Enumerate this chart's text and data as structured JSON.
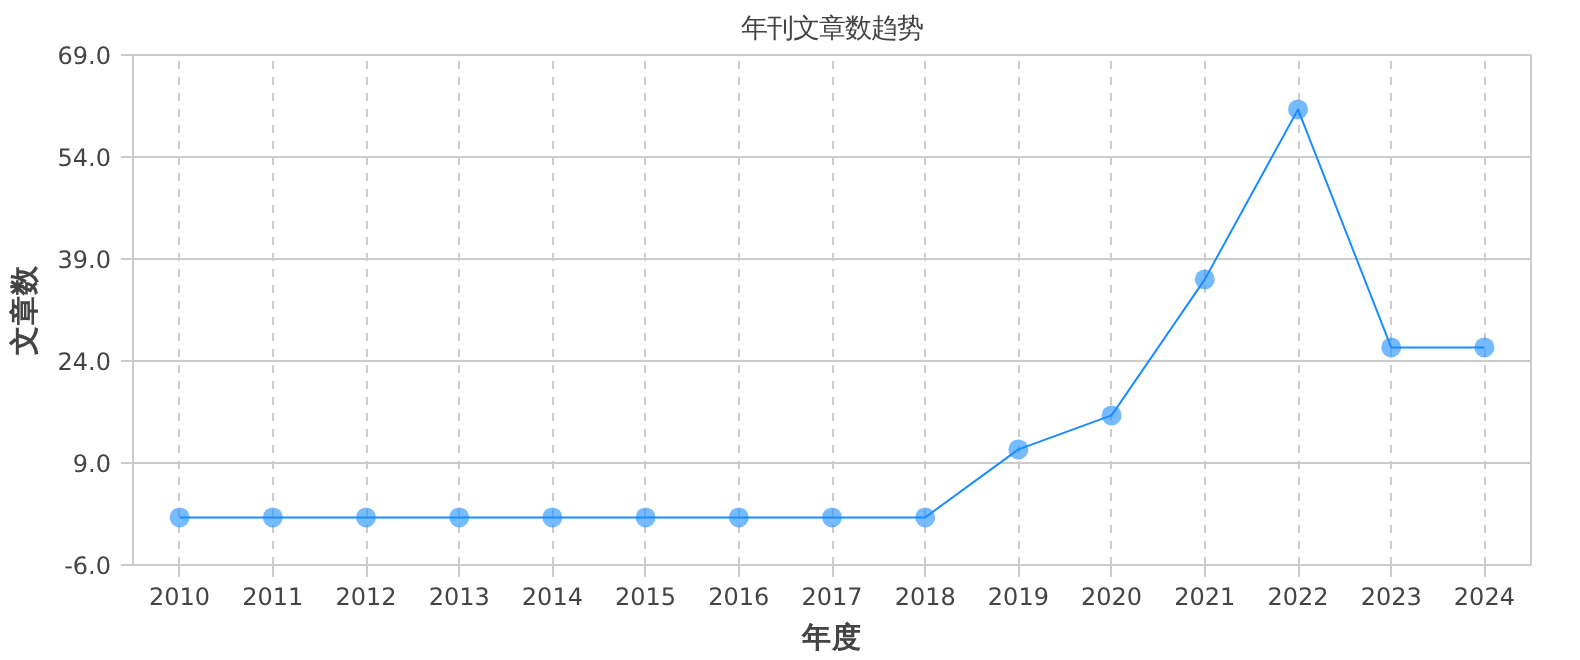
{
  "chart_data": {
    "type": "line",
    "title": "年刊文章数趋势",
    "xlabel": "年度",
    "ylabel": "文章数",
    "categories": [
      "2010",
      "2011",
      "2012",
      "2013",
      "2014",
      "2015",
      "2016",
      "2017",
      "2018",
      "2019",
      "2020",
      "2021",
      "2022",
      "2023",
      "2024"
    ],
    "series": [
      {
        "color": "#1a8cff",
        "values": [
          1,
          1,
          1,
          1,
          1,
          1,
          1,
          1,
          1,
          11,
          16,
          36,
          61,
          26,
          26
        ]
      }
    ],
    "ylim": [
      -6,
      69
    ],
    "yticks": [
      {
        "value": -6,
        "label": "-6.0"
      },
      {
        "value": 9,
        "label": "9.0"
      },
      {
        "value": 24,
        "label": "24.0"
      },
      {
        "value": 39,
        "label": "39.0"
      },
      {
        "value": 54,
        "label": "54.0"
      },
      {
        "value": 69,
        "label": "69.0"
      }
    ],
    "grid": true,
    "marker": "circle",
    "line_style": "solid"
  }
}
